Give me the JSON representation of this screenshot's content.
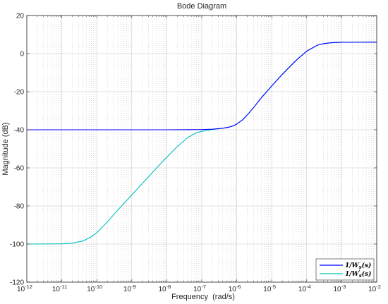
{
  "chart_data": {
    "type": "line",
    "title": "Bode Diagram",
    "xlabel": "Frequency  (rad/s)",
    "ylabel": "Magnitude (dB)",
    "xscale": "log",
    "xlim": [
      1e-12,
      0.01
    ],
    "ylim": [
      -120,
      20
    ],
    "x_ticks": [
      {
        "value": 1e-12,
        "label": "10",
        "exp": "-12"
      },
      {
        "value": 1e-11,
        "label": "10",
        "exp": "-11"
      },
      {
        "value": 1e-10,
        "label": "10",
        "exp": "-10"
      },
      {
        "value": 1e-09,
        "label": "10",
        "exp": "-9"
      },
      {
        "value": 1e-08,
        "label": "10",
        "exp": "-8"
      },
      {
        "value": 1e-07,
        "label": "10",
        "exp": "-7"
      },
      {
        "value": 1e-06,
        "label": "10",
        "exp": "-6"
      },
      {
        "value": 1e-05,
        "label": "10",
        "exp": "-5"
      },
      {
        "value": 0.0001,
        "label": "10",
        "exp": "-4"
      },
      {
        "value": 0.001,
        "label": "10",
        "exp": "-3"
      },
      {
        "value": 0.01,
        "label": "10",
        "exp": "-2"
      }
    ],
    "y_ticks": [
      20,
      0,
      -20,
      -40,
      -60,
      -80,
      -100,
      -120
    ],
    "grid": true,
    "legend_position": "bottom-right",
    "series": [
      {
        "name": "1/W_s(s)",
        "legend_base": "1/W",
        "legend_sub": "s",
        "legend_prime": "",
        "color": "#0000ff",
        "x": [
          1e-12,
          1e-11,
          1e-10,
          1e-09,
          1e-08,
          1e-07,
          2e-07,
          4e-07,
          6e-07,
          8e-07,
          1e-06,
          1.5e-06,
          2e-06,
          3e-06,
          5e-06,
          1e-05,
          2e-05,
          5e-05,
          0.0001,
          0.0002,
          0.0003,
          0.0005,
          0.001,
          0.01
        ],
        "y": [
          -40,
          -40,
          -40,
          -40,
          -40,
          -39.9,
          -39.7,
          -39.2,
          -38.6,
          -37.9,
          -37.0,
          -34.6,
          -32.2,
          -28.4,
          -23.3,
          -17.0,
          -10.9,
          -3.5,
          1.3,
          4.4,
          5.2,
          5.7,
          5.95,
          6.0
        ]
      },
      {
        "name": "1/W'_s(s)",
        "legend_base": "1/W",
        "legend_sub": "s",
        "legend_prime": "'",
        "color": "#00bfbf",
        "x": [
          1e-12,
          1e-11,
          2e-11,
          4e-11,
          7e-11,
          1e-10,
          1.5e-10,
          2e-10,
          3e-10,
          5e-10,
          1e-09,
          2e-09,
          5e-09,
          1e-08,
          2e-08,
          4e-08,
          7e-08,
          1e-07,
          2e-07,
          4e-07,
          6e-07,
          8e-07,
          1e-06,
          1.5e-06,
          2e-06,
          3e-06,
          5e-06,
          1e-05,
          2e-05,
          5e-05,
          0.0001,
          0.0002,
          0.0003,
          0.0005,
          0.001,
          0.01
        ],
        "y": [
          -100,
          -99.9,
          -99.5,
          -98.4,
          -96.2,
          -94.0,
          -90.8,
          -88.4,
          -84.7,
          -80.2,
          -74.2,
          -68.2,
          -60.3,
          -54.4,
          -48.8,
          -44.0,
          -41.6,
          -40.8,
          -39.9,
          -39.2,
          -38.6,
          -37.9,
          -37.0,
          -34.6,
          -32.2,
          -28.4,
          -23.3,
          -17.0,
          -10.9,
          -3.5,
          1.3,
          4.4,
          5.2,
          5.7,
          5.95,
          6.0
        ]
      }
    ]
  }
}
